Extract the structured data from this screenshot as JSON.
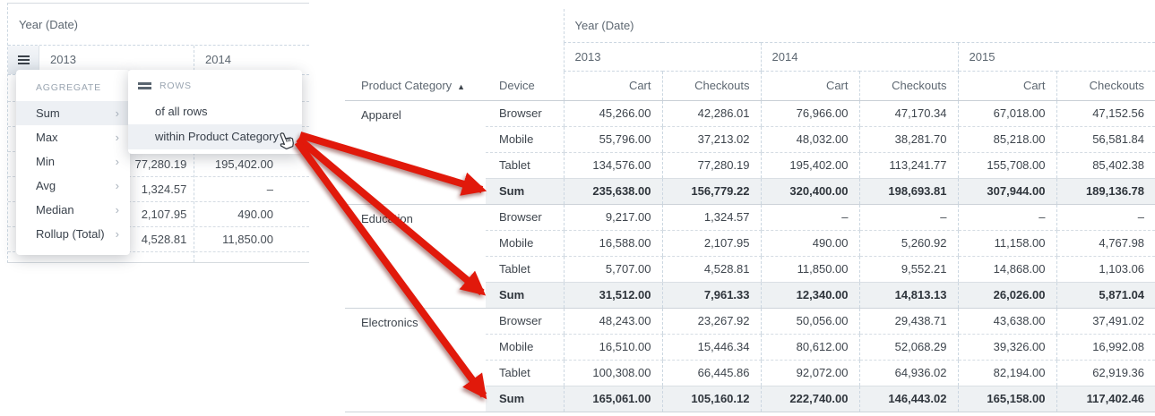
{
  "left_panel": {
    "year_label": "Year (Date)",
    "columns": [
      "2013",
      "2014"
    ],
    "visible_rows": [
      [
        "77,280.19",
        "195,402.00"
      ],
      [
        "1,324.57",
        "–"
      ],
      [
        "2,107.95",
        "490.00"
      ],
      [
        "4,528.81",
        "11,850.00"
      ]
    ],
    "aggregate_menu": {
      "title": "AGGREGATE",
      "items": [
        "Sum",
        "Max",
        "Min",
        "Avg",
        "Median",
        "Rollup (Total)"
      ],
      "selected": "Sum",
      "chevron": "›"
    },
    "rows_submenu": {
      "title": "ROWS",
      "items": [
        "of all rows",
        "within Product Category"
      ],
      "highlighted": "within Product Category"
    }
  },
  "right_panel": {
    "year_label": "Year (Date)",
    "years": [
      "2013",
      "2014",
      "2015"
    ],
    "measure_columns": [
      "Cart",
      "Checkouts"
    ],
    "row_headers": {
      "category": "Product Category",
      "device": "Device"
    },
    "sort_indicator": "▲",
    "groups": [
      {
        "category": "Apparel",
        "rows": [
          {
            "device": "Browser",
            "is_sum": false,
            "values": [
              "45,266.00",
              "42,286.01",
              "76,966.00",
              "47,170.34",
              "67,018.00",
              "47,152.56"
            ]
          },
          {
            "device": "Mobile",
            "is_sum": false,
            "values": [
              "55,796.00",
              "37,213.02",
              "48,032.00",
              "38,281.70",
              "85,218.00",
              "56,581.84"
            ]
          },
          {
            "device": "Tablet",
            "is_sum": false,
            "values": [
              "134,576.00",
              "77,280.19",
              "195,402.00",
              "113,241.77",
              "155,708.00",
              "85,402.38"
            ]
          },
          {
            "device": "Sum",
            "is_sum": true,
            "values": [
              "235,638.00",
              "156,779.22",
              "320,400.00",
              "198,693.81",
              "307,944.00",
              "189,136.78"
            ]
          }
        ]
      },
      {
        "category": "Education",
        "rows": [
          {
            "device": "Browser",
            "is_sum": false,
            "values": [
              "9,217.00",
              "1,324.57",
              "–",
              "–",
              "–",
              "–"
            ]
          },
          {
            "device": "Mobile",
            "is_sum": false,
            "values": [
              "16,588.00",
              "2,107.95",
              "490.00",
              "5,260.92",
              "11,158.00",
              "4,767.98"
            ]
          },
          {
            "device": "Tablet",
            "is_sum": false,
            "values": [
              "5,707.00",
              "4,528.81",
              "11,850.00",
              "9,552.21",
              "14,868.00",
              "1,103.06"
            ]
          },
          {
            "device": "Sum",
            "is_sum": true,
            "values": [
              "31,512.00",
              "7,961.33",
              "12,340.00",
              "14,813.13",
              "26,026.00",
              "5,871.04"
            ]
          }
        ]
      },
      {
        "category": "Electronics",
        "rows": [
          {
            "device": "Browser",
            "is_sum": false,
            "values": [
              "48,243.00",
              "23,267.92",
              "50,056.00",
              "29,438.71",
              "43,638.00",
              "37,491.02"
            ]
          },
          {
            "device": "Mobile",
            "is_sum": false,
            "values": [
              "16,510.00",
              "15,446.34",
              "80,612.00",
              "52,068.29",
              "39,326.00",
              "16,992.08"
            ]
          },
          {
            "device": "Tablet",
            "is_sum": false,
            "values": [
              "100,308.00",
              "66,445.86",
              "92,072.00",
              "64,936.02",
              "82,194.00",
              "62,919.36"
            ]
          },
          {
            "device": "Sum",
            "is_sum": true,
            "values": [
              "165,061.00",
              "105,160.12",
              "222,740.00",
              "146,443.02",
              "165,158.00",
              "117,402.46"
            ]
          }
        ]
      }
    ]
  },
  "annotations": {
    "arrow_color": "#e1190b",
    "arrow_count": 3,
    "cursor": "hand-pointer"
  }
}
